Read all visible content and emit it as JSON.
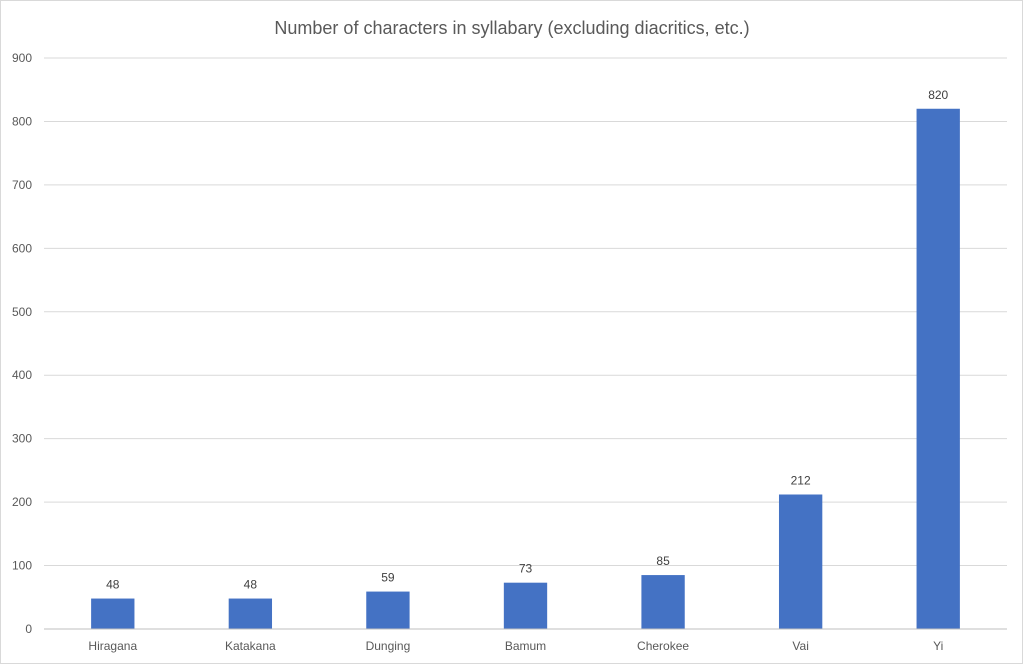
{
  "chart_data": {
    "type": "bar",
    "title": "Number of characters in syllabary (excluding diacritics, etc.)",
    "xlabel": "",
    "ylabel": "",
    "categories": [
      "Hiragana",
      "Katakana",
      "Dunging",
      "Bamum",
      "Cherokee",
      "Vai",
      "Yi"
    ],
    "values": [
      48,
      48,
      59,
      73,
      85,
      212,
      820
    ],
    "data_labels": [
      "48",
      "48",
      "59",
      "73",
      "85",
      "212",
      "820"
    ],
    "ylim": [
      0,
      900
    ],
    "y_ticks": [
      0,
      100,
      200,
      300,
      400,
      500,
      600,
      700,
      800,
      900
    ],
    "grid": true,
    "legend": "none",
    "bar_color": "#4472C4"
  }
}
